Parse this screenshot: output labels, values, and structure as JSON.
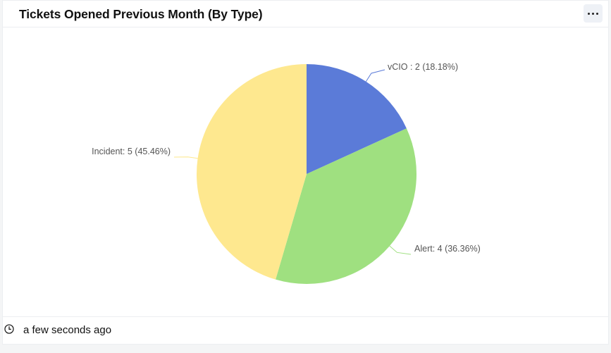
{
  "card": {
    "title": "Tickets Opened Previous Month (By Type)",
    "menu_icon": "more-horizontal-icon",
    "footer": {
      "icon": "clock-icon",
      "updated_text": "a few seconds ago"
    }
  },
  "chart_data": {
    "type": "pie",
    "title": "Tickets Opened Previous Month (By Type)",
    "categories": [
      "vCIO",
      "Alert",
      "Incident"
    ],
    "values": [
      2,
      4,
      5
    ],
    "percentages": [
      18.18,
      36.36,
      45.46
    ],
    "colors": [
      "#5b7bd8",
      "#9fe080",
      "#fee88f"
    ],
    "labels": [
      "vCIO : 2 (18.18%)",
      "Alert: 4 (36.36%)",
      "Incident: 5 (45.46%)"
    ],
    "start_angle": 90,
    "direction": "clockwise",
    "legend": "none"
  }
}
